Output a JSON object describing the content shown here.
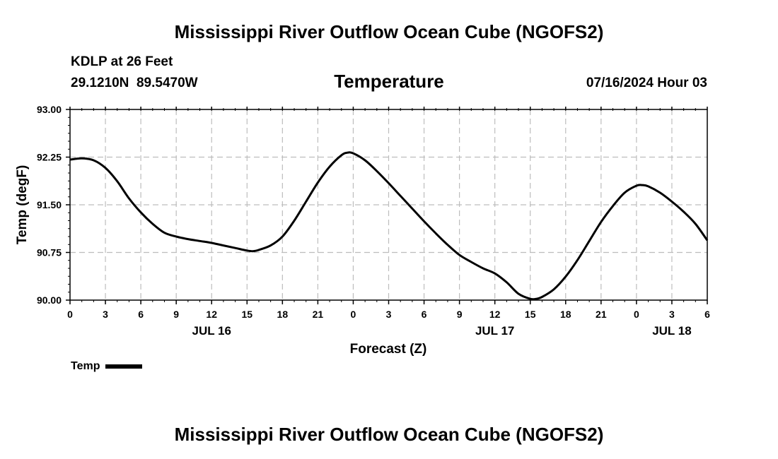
{
  "header": {
    "title": "Mississippi River Outflow Ocean Cube (NGOFS2)",
    "station": "KDLP at 26 Feet",
    "coords": "29.1210N  89.5470W",
    "subtitle": "Temperature",
    "datetime": "07/16/2024 Hour 03"
  },
  "footer": {
    "title": "Mississippi River Outflow Ocean Cube (NGOFS2)"
  },
  "legend": {
    "label": "Temp"
  },
  "colors": {
    "line": "#000000",
    "grid": "#bdbdbd"
  },
  "chart_data": {
    "type": "line",
    "title": "Temperature",
    "xlabel": "Forecast (Z)",
    "ylabel": "Temp (degF)",
    "xlim": [
      0,
      54
    ],
    "ylim": [
      90.0,
      93.0
    ],
    "y_ticks": [
      "90.00",
      "90.75",
      "91.50",
      "92.25",
      "93.00"
    ],
    "x_tick_labels": [
      "0",
      "3",
      "6",
      "9",
      "12",
      "15",
      "18",
      "21",
      "0",
      "3",
      "6",
      "9",
      "12",
      "15",
      "18",
      "21",
      "0",
      "3",
      "6"
    ],
    "date_labels": [
      {
        "label": "JUL 16",
        "hour": 12
      },
      {
        "label": "JUL 17",
        "hour": 36
      },
      {
        "label": "JUL 18",
        "hour": 51
      }
    ],
    "grid": true,
    "series": [
      {
        "name": "Temp",
        "x": [
          0,
          1,
          2,
          3,
          4,
          5,
          6,
          7,
          8,
          9,
          10,
          11,
          12,
          13,
          14,
          15,
          15.5,
          16,
          17,
          18,
          19,
          20,
          21,
          22,
          23,
          23.5,
          24,
          25,
          26,
          27,
          28,
          29,
          30,
          31,
          32,
          33,
          34,
          35,
          36,
          37,
          38,
          39,
          39.5,
          40,
          41,
          42,
          43,
          44,
          45,
          46,
          47,
          48,
          48.5,
          49,
          50,
          51,
          52,
          53,
          54
        ],
        "values": [
          92.21,
          92.23,
          92.2,
          92.08,
          91.87,
          91.6,
          91.38,
          91.2,
          91.06,
          91.0,
          90.96,
          90.93,
          90.9,
          90.86,
          90.82,
          90.78,
          90.77,
          90.79,
          90.86,
          91.0,
          91.25,
          91.55,
          91.85,
          92.1,
          92.28,
          92.32,
          92.31,
          92.2,
          92.03,
          91.84,
          91.64,
          91.44,
          91.24,
          91.05,
          90.87,
          90.71,
          90.6,
          90.5,
          90.42,
          90.28,
          90.1,
          90.02,
          90.02,
          90.05,
          90.17,
          90.37,
          90.63,
          90.93,
          91.23,
          91.48,
          91.69,
          91.8,
          91.81,
          91.79,
          91.69,
          91.55,
          91.39,
          91.2,
          90.94
        ]
      }
    ]
  }
}
